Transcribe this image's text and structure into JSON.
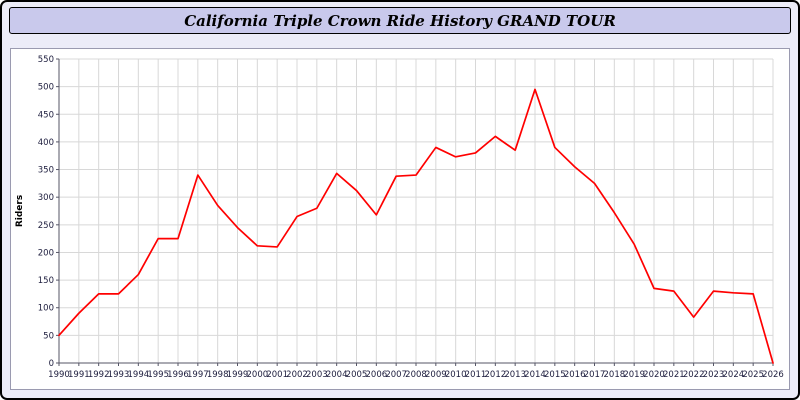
{
  "header": {
    "title": "California Triple Crown Ride History GRAND TOUR"
  },
  "colors": {
    "page_background": "#ececf8",
    "title_background": "#c9c9ec",
    "line": "#ff0000",
    "grid": "#d8d8d8",
    "axis": "#555566"
  },
  "chart_data": {
    "type": "line",
    "title": "California Triple Crown Ride History GRAND TOUR",
    "xlabel": "",
    "ylabel": "Riders",
    "ylim": [
      0,
      550
    ],
    "y_tick_step": 50,
    "grid": true,
    "legend_position": "none",
    "categories": [
      "1990",
      "1991",
      "1992",
      "1993",
      "1994",
      "1995",
      "1996",
      "1997",
      "1998",
      "1999",
      "2000",
      "2001",
      "2002",
      "2003",
      "2004",
      "2005",
      "2006",
      "2007",
      "2008",
      "2009",
      "2010",
      "2011",
      "2012",
      "2013",
      "2014",
      "2015",
      "2016",
      "2017",
      "2018",
      "2019",
      "2020",
      "2021",
      "2022",
      "2023",
      "2024",
      "2025",
      "2026"
    ],
    "values": [
      50,
      90,
      125,
      125,
      160,
      225,
      225,
      340,
      285,
      245,
      212,
      210,
      265,
      280,
      343,
      312,
      268,
      338,
      340,
      390,
      373,
      380,
      410,
      385,
      495,
      390,
      355,
      325,
      272,
      215,
      135,
      130,
      83,
      130,
      127,
      125,
      0
    ]
  }
}
